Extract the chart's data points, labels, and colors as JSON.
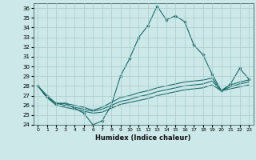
{
  "xlabel": "Humidex (Indice chaleur)",
  "ylabel": "",
  "xlim": [
    -0.5,
    23.5
  ],
  "ylim": [
    24,
    36.5
  ],
  "yticks": [
    24,
    25,
    26,
    27,
    28,
    29,
    30,
    31,
    32,
    33,
    34,
    35,
    36
  ],
  "xticks": [
    0,
    1,
    2,
    3,
    4,
    5,
    6,
    7,
    8,
    9,
    10,
    11,
    12,
    13,
    14,
    15,
    16,
    17,
    18,
    19,
    20,
    21,
    22,
    23
  ],
  "background_color": "#cce8e8",
  "grid_color": "#aacccc",
  "line_color": "#1a6b6b",
  "lines": [
    {
      "x": [
        0,
        1,
        2,
        3,
        4,
        5,
        6,
        7,
        8,
        9,
        10,
        11,
        12,
        13,
        14,
        15,
        16,
        17,
        18,
        19,
        20,
        21,
        22,
        23
      ],
      "y": [
        28.0,
        27.0,
        26.2,
        26.2,
        25.7,
        25.2,
        24.0,
        24.4,
        26.0,
        29.0,
        30.8,
        33.0,
        34.2,
        36.2,
        34.8,
        35.2,
        34.6,
        32.2,
        31.2,
        29.2,
        27.5,
        28.2,
        29.8,
        28.7
      ],
      "marker": true
    },
    {
      "x": [
        0,
        1,
        2,
        3,
        4,
        5,
        6,
        7,
        8,
        9,
        10,
        11,
        12,
        13,
        14,
        15,
        16,
        17,
        18,
        19,
        20,
        21,
        22,
        23
      ],
      "y": [
        28.0,
        26.8,
        26.2,
        26.2,
        26.0,
        25.8,
        25.5,
        25.8,
        26.3,
        26.8,
        27.0,
        27.3,
        27.5,
        27.8,
        28.0,
        28.2,
        28.4,
        28.5,
        28.6,
        28.8,
        27.5,
        28.1,
        28.4,
        28.6
      ],
      "marker": false
    },
    {
      "x": [
        0,
        1,
        2,
        3,
        4,
        5,
        6,
        7,
        8,
        9,
        10,
        11,
        12,
        13,
        14,
        15,
        16,
        17,
        18,
        19,
        20,
        21,
        22,
        23
      ],
      "y": [
        28.0,
        26.8,
        26.2,
        26.0,
        25.8,
        25.6,
        25.4,
        25.6,
        26.0,
        26.4,
        26.6,
        26.9,
        27.1,
        27.4,
        27.6,
        27.8,
        28.0,
        28.1,
        28.2,
        28.5,
        27.5,
        27.9,
        28.2,
        28.4
      ],
      "marker": false
    },
    {
      "x": [
        0,
        1,
        2,
        3,
        4,
        5,
        6,
        7,
        8,
        9,
        10,
        11,
        12,
        13,
        14,
        15,
        16,
        17,
        18,
        19,
        20,
        21,
        22,
        23
      ],
      "y": [
        28.0,
        26.8,
        26.0,
        25.8,
        25.6,
        25.4,
        25.2,
        25.3,
        25.7,
        26.1,
        26.3,
        26.5,
        26.7,
        27.0,
        27.2,
        27.4,
        27.6,
        27.7,
        27.8,
        28.1,
        27.5,
        27.7,
        27.9,
        28.1
      ],
      "marker": false
    }
  ]
}
